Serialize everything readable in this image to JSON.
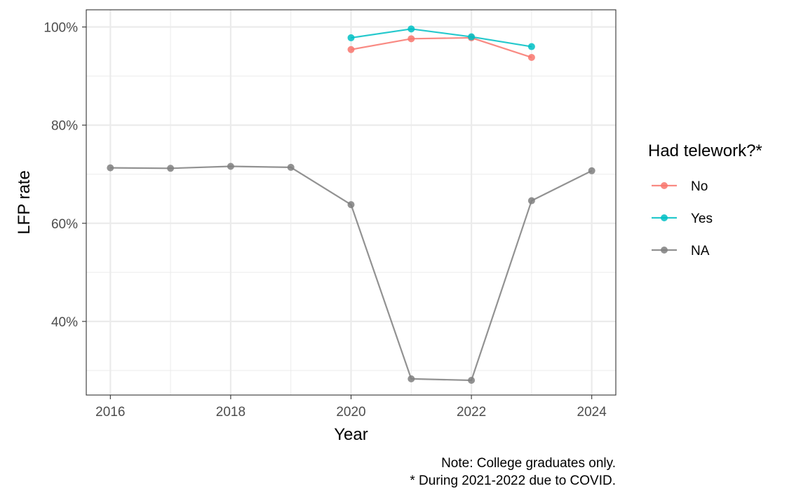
{
  "chart_data": {
    "type": "line",
    "xlabel": "Year",
    "ylabel": "LFP rate",
    "xlim": [
      2015.6,
      2024.4
    ],
    "ylim": [
      25.0,
      103.5
    ],
    "x_ticks": [
      2016,
      2018,
      2020,
      2022,
      2024
    ],
    "x_tick_labels": [
      "2016",
      "2018",
      "2020",
      "2022",
      "2024"
    ],
    "y_ticks": [
      40,
      60,
      80,
      100
    ],
    "y_tick_labels": [
      "40%",
      "60%",
      "80%",
      "100%"
    ],
    "grid": true,
    "legend": {
      "title": "Had telework?*",
      "position": "right",
      "entries": [
        "No",
        "Yes",
        "NA"
      ]
    },
    "series": [
      {
        "name": "No",
        "color": "#F8766D",
        "x": [
          2020,
          2021,
          2022,
          2023
        ],
        "y": [
          95.4,
          97.6,
          97.8,
          93.8
        ]
      },
      {
        "name": "Yes",
        "color": "#00BFC4",
        "x": [
          2020,
          2021,
          2022,
          2023
        ],
        "y": [
          97.8,
          99.6,
          98.0,
          96.0
        ]
      },
      {
        "name": "NA",
        "color": "#7F7F7F",
        "x": [
          2016,
          2017,
          2018,
          2019,
          2020,
          2021,
          2022,
          2023,
          2024
        ],
        "y": [
          71.3,
          71.2,
          71.6,
          71.4,
          63.8,
          28.3,
          28.0,
          64.6,
          70.7
        ]
      }
    ],
    "caption": [
      "Note: College graduates only.",
      "* During 2021-2022 due to COVID."
    ]
  }
}
